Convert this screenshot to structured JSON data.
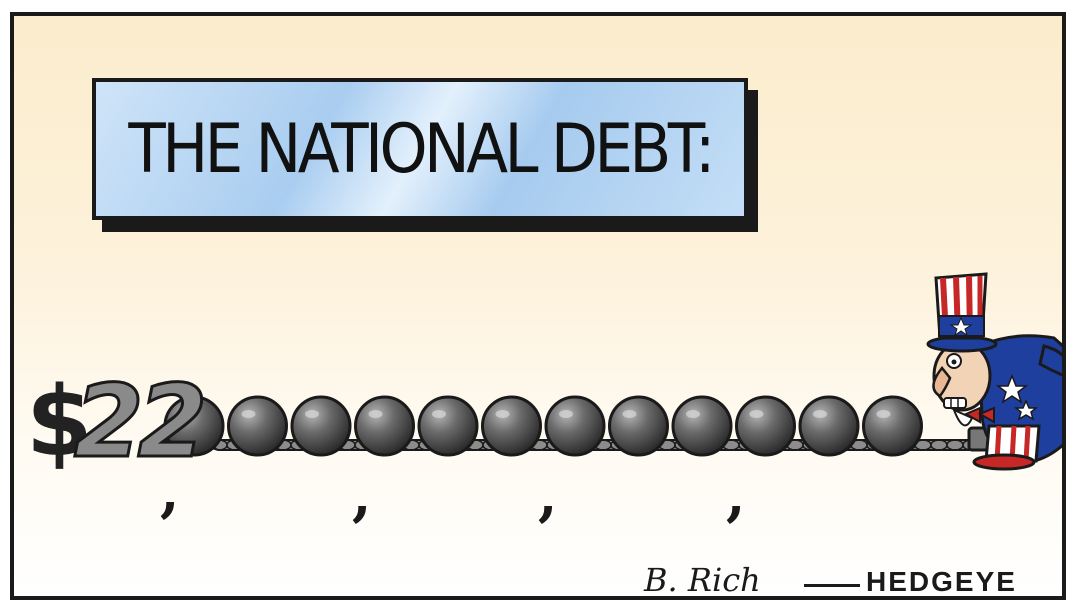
{
  "cartoon": {
    "title": "THE NATIONAL DEBT:",
    "amount_symbol": "$",
    "amount_digits": "22",
    "commas": [
      ",",
      ",",
      ",",
      ","
    ],
    "signature": "B. Rich",
    "brand": "HEDGEYE"
  },
  "colors": {
    "background_top": "#fbeccc",
    "title_box": "#a9cdf0",
    "ball": "#5a5a5a",
    "uncle_sam_red": "#c62828",
    "uncle_sam_blue": "#1f3f9e"
  },
  "icons": {
    "balls": "ball-and-chain-icon",
    "character": "uncle-sam-icon"
  }
}
